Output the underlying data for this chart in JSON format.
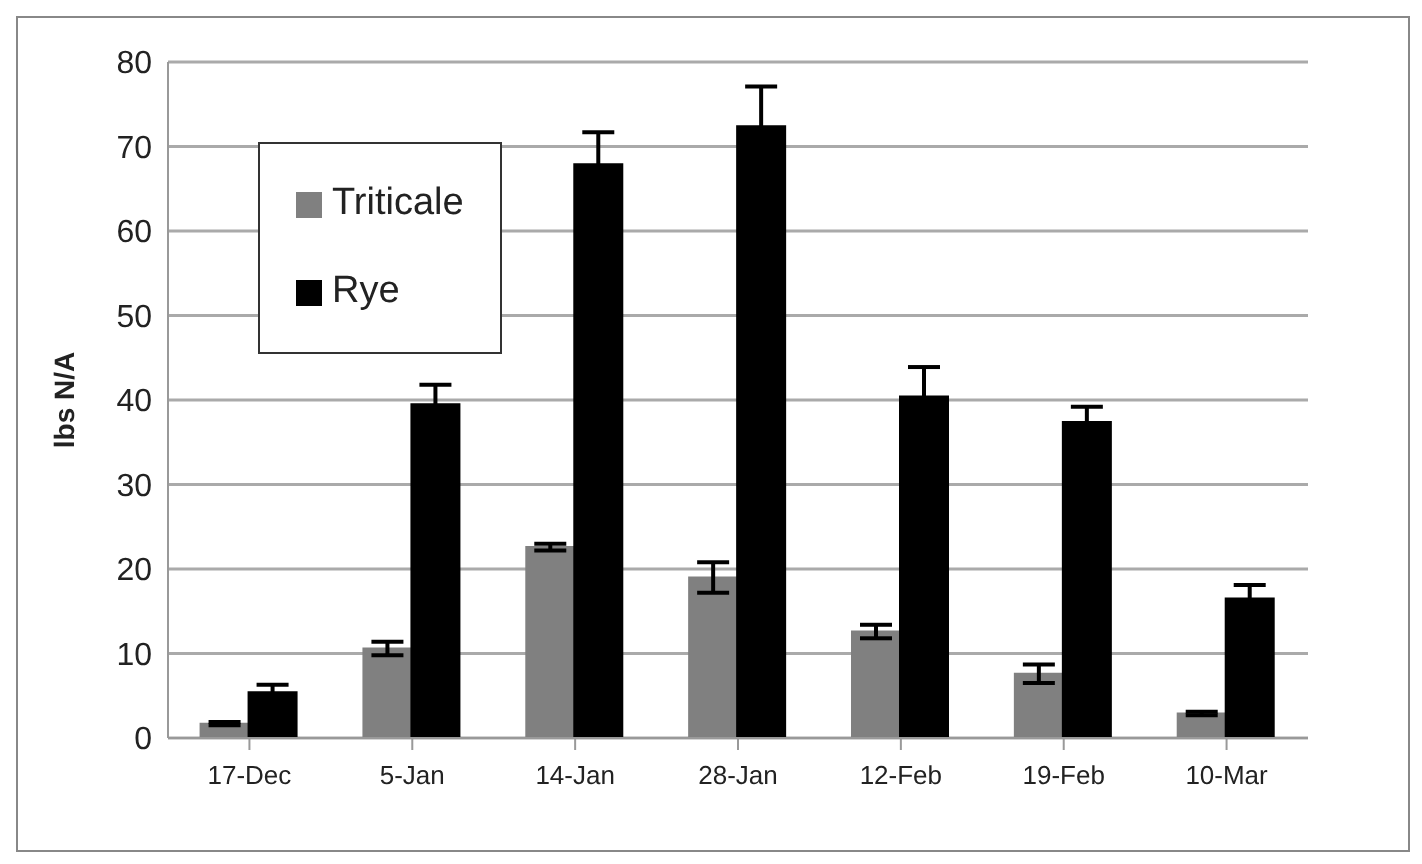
{
  "chart_data": {
    "type": "bar",
    "ylabel": "lbs N/A",
    "categories": [
      "17-Dec",
      "5-Jan",
      "14-Jan",
      "28-Jan",
      "12-Feb",
      "19-Feb",
      "10-Mar"
    ],
    "series": [
      {
        "name": "Triticale",
        "color": "#808080",
        "values": [
          1.7,
          10.6,
          22.6,
          19.0,
          12.6,
          7.6,
          2.9
        ],
        "errors": [
          0.2,
          0.8,
          0.4,
          1.8,
          0.8,
          1.1,
          0.2
        ]
      },
      {
        "name": "Rye",
        "color": "#000000",
        "values": [
          5.4,
          39.5,
          67.9,
          72.4,
          40.4,
          37.4,
          16.5
        ],
        "errors": [
          0.9,
          2.3,
          3.8,
          4.7,
          3.5,
          1.8,
          1.6
        ]
      }
    ],
    "ylim": [
      0,
      80
    ],
    "yticks": [
      0,
      10,
      20,
      30,
      40,
      50,
      60,
      70,
      80
    ],
    "grid": "y",
    "legend": "top left"
  }
}
